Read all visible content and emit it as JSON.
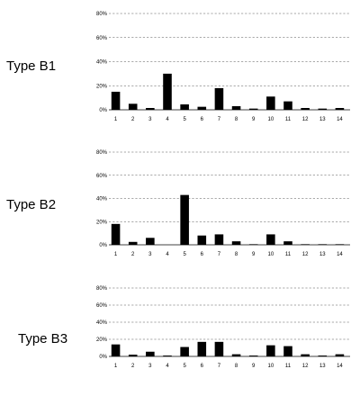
{
  "chart_data": [
    {
      "type": "bar",
      "label": "Type B1",
      "categories": [
        "1",
        "2",
        "3",
        "4",
        "5",
        "6",
        "7",
        "8",
        "9",
        "10",
        "11",
        "12",
        "13",
        "14"
      ],
      "values": [
        15,
        5,
        1.5,
        30,
        4.5,
        2.5,
        18,
        3,
        1,
        11,
        7,
        1.5,
        1,
        1.5
      ],
      "ylim": [
        0,
        80
      ],
      "yticks": [
        "0%",
        "20%",
        "40%",
        "60%",
        "80%"
      ],
      "grid": true
    },
    {
      "type": "bar",
      "label": "Type B2",
      "categories": [
        "1",
        "2",
        "3",
        "4",
        "5",
        "6",
        "7",
        "8",
        "9",
        "10",
        "11",
        "12",
        "13",
        "14"
      ],
      "values": [
        18,
        2.5,
        6,
        0,
        43,
        8,
        9,
        3,
        0.5,
        9,
        3,
        0.5,
        0.5,
        0.5
      ],
      "ylim": [
        0,
        80
      ],
      "yticks": [
        "0%",
        "20%",
        "40%",
        "60%",
        "80%"
      ],
      "grid": true
    },
    {
      "type": "bar",
      "label": "Type B3",
      "categories": [
        "1",
        "2",
        "3",
        "4",
        "5",
        "6",
        "7",
        "8",
        "9",
        "10",
        "11",
        "12",
        "13",
        "14"
      ],
      "values": [
        14,
        2,
        5.5,
        1,
        11,
        17,
        17,
        2.5,
        1,
        13,
        12,
        2.5,
        1,
        2.5
      ],
      "ylim": [
        0,
        80
      ],
      "yticks": [
        "0%",
        "20%",
        "40%",
        "60%",
        "80%"
      ],
      "grid": true
    }
  ]
}
